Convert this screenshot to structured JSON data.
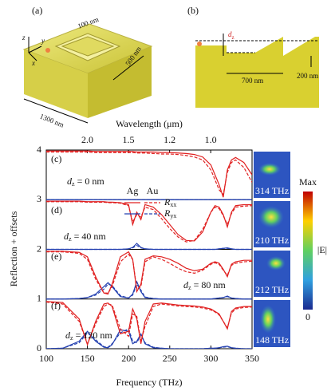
{
  "schematic_a": {
    "label": "(a)",
    "width": "100 nm",
    "side": "500 nm",
    "length": "1300 nm",
    "axes": [
      "x",
      "y",
      "z"
    ]
  },
  "schematic_b": {
    "label": "(b)",
    "offset": {
      "symbol": "d",
      "subscript": "z"
    },
    "period": "700 nm",
    "depth": "200 nm"
  },
  "chart_data": {
    "type": "line",
    "xlabel": "Frequency (THz)",
    "ylabel": "Reflection + offsets",
    "x2label": "Wavelength (μm)",
    "xlim": [
      100,
      350
    ],
    "xticks": [
      100,
      150,
      200,
      250,
      300,
      350
    ],
    "ylim": [
      0,
      4
    ],
    "yticks": [
      0,
      1,
      2,
      3,
      4
    ],
    "x2ticks": [
      {
        "value": 2.0,
        "label": "2.0"
      },
      1.5,
      1.2,
      {
        "value": 1.0,
        "label": "1.0"
      }
    ],
    "grid": true,
    "legend": {
      "columns": [
        "Ag",
        "Au"
      ],
      "rows": [
        {
          "symbol": "R",
          "subscript": "xx"
        },
        {
          "symbol": "R",
          "subscript": "yx"
        }
      ]
    },
    "panels": [
      {
        "label": "(c)",
        "annotation": {
          "symbol": "d",
          "subscript": "z",
          "text": "= 0 nm"
        }
      },
      {
        "label": "(d)",
        "annotation": {
          "symbol": "d",
          "subscript": "z",
          "text": "= 40 nm"
        }
      },
      {
        "label": "(e)",
        "annotation": {
          "symbol": "d",
          "subscript": "z",
          "text": "= 80 nm"
        }
      },
      {
        "label": "(f)",
        "annotation": {
          "symbol": "d",
          "subscript": "z",
          "text": "= 120 nm"
        }
      }
    ],
    "x": [
      100,
      120,
      140,
      150,
      160,
      170,
      175,
      180,
      190,
      200,
      205,
      210,
      215,
      220,
      230,
      240,
      250,
      260,
      270,
      280,
      290,
      300,
      305,
      310,
      315,
      320,
      325,
      330,
      340,
      350
    ],
    "series": [
      {
        "panel": 0,
        "metal": 0,
        "component": 0,
        "color": "#e02020",
        "dash": false,
        "values": [
          3.98,
          3.98,
          3.98,
          3.98,
          3.97,
          3.97,
          3.97,
          3.97,
          3.97,
          3.97,
          3.97,
          3.96,
          3.96,
          3.96,
          3.96,
          3.95,
          3.95,
          3.94,
          3.93,
          3.91,
          3.86,
          3.7,
          3.5,
          3.3,
          3.05,
          3.6,
          3.8,
          3.85,
          3.75,
          3.5
        ]
      },
      {
        "panel": 0,
        "metal": 1,
        "component": 0,
        "color": "#e02020",
        "dash": true,
        "values": [
          3.96,
          3.96,
          3.96,
          3.96,
          3.95,
          3.95,
          3.95,
          3.95,
          3.95,
          3.95,
          3.95,
          3.94,
          3.94,
          3.94,
          3.93,
          3.92,
          3.92,
          3.91,
          3.89,
          3.86,
          3.8,
          3.6,
          3.4,
          3.2,
          3.1,
          3.55,
          3.75,
          3.8,
          3.65,
          3.35
        ]
      },
      {
        "panel": 0,
        "metal": 0,
        "component": 1,
        "color": "#2440b0",
        "dash": false,
        "values": [
          3,
          3,
          3,
          3,
          3,
          3,
          3,
          3,
          3,
          3,
          3,
          3,
          3,
          3,
          3,
          3,
          3,
          3,
          3,
          3,
          3,
          3,
          3,
          3,
          3,
          3,
          3,
          3,
          3,
          3
        ]
      },
      {
        "panel": 0,
        "metal": 1,
        "component": 1,
        "color": "#2440b0",
        "dash": true,
        "values": [
          3,
          3,
          3,
          3,
          3,
          3,
          3,
          3,
          3,
          3,
          3,
          3,
          3,
          3,
          3,
          3,
          3,
          3,
          3,
          3,
          3,
          3,
          3,
          3,
          3,
          3,
          3,
          3,
          3,
          3
        ]
      },
      {
        "panel": 1,
        "metal": 0,
        "component": 0,
        "color": "#e02020",
        "dash": false,
        "values": [
          2.97,
          2.97,
          2.97,
          2.96,
          2.96,
          2.96,
          2.95,
          2.95,
          2.94,
          2.9,
          2.5,
          2.75,
          2.6,
          2.9,
          2.85,
          2.7,
          2.5,
          2.3,
          2.18,
          2.17,
          2.35,
          2.75,
          2.88,
          2.85,
          2.7,
          2.45,
          2.75,
          2.88,
          2.9,
          2.9
        ]
      },
      {
        "panel": 1,
        "metal": 1,
        "component": 0,
        "color": "#e02020",
        "dash": true,
        "values": [
          2.96,
          2.96,
          2.96,
          2.95,
          2.95,
          2.95,
          2.94,
          2.94,
          2.93,
          2.88,
          2.55,
          2.7,
          2.65,
          2.85,
          2.8,
          2.62,
          2.42,
          2.25,
          2.15,
          2.18,
          2.4,
          2.75,
          2.85,
          2.82,
          2.68,
          2.5,
          2.72,
          2.85,
          2.87,
          2.88
        ]
      },
      {
        "panel": 1,
        "metal": 0,
        "component": 1,
        "color": "#2440b0",
        "dash": false,
        "values": [
          2,
          2,
          2,
          2,
          2,
          2,
          2,
          2,
          2,
          2.01,
          2.04,
          2.12,
          2.04,
          2.01,
          2,
          2,
          2,
          2,
          2,
          2,
          2,
          2,
          2,
          2.01,
          2.02,
          2.03,
          2.01,
          2,
          2,
          2
        ]
      },
      {
        "panel": 1,
        "metal": 1,
        "component": 1,
        "color": "#2440b0",
        "dash": true,
        "values": [
          2,
          2,
          2,
          2,
          2,
          2,
          2,
          2,
          2,
          2.01,
          2.03,
          2.08,
          2.03,
          2.01,
          2,
          2,
          2,
          2,
          2,
          2,
          2,
          2,
          2,
          2.01,
          2.02,
          2.02,
          2.01,
          2,
          2,
          2
        ]
      },
      {
        "panel": 2,
        "metal": 0,
        "component": 0,
        "color": "#e02020",
        "dash": false,
        "values": [
          1.96,
          1.96,
          1.94,
          1.85,
          1.45,
          1.12,
          1.1,
          1.3,
          1.85,
          1.95,
          1.8,
          1.15,
          1.3,
          1.8,
          1.87,
          1.85,
          1.8,
          1.72,
          1.62,
          1.57,
          1.6,
          1.72,
          1.75,
          1.72,
          1.6,
          1.45,
          1.7,
          1.75,
          1.78,
          1.78
        ]
      },
      {
        "panel": 2,
        "metal": 1,
        "component": 0,
        "color": "#e02020",
        "dash": true,
        "values": [
          1.95,
          1.95,
          1.92,
          1.8,
          1.4,
          1.12,
          1.12,
          1.25,
          1.75,
          1.9,
          1.8,
          1.2,
          1.25,
          1.75,
          1.85,
          1.8,
          1.72,
          1.62,
          1.55,
          1.52,
          1.58,
          1.7,
          1.73,
          1.7,
          1.58,
          1.48,
          1.68,
          1.72,
          1.75,
          1.76
        ]
      },
      {
        "panel": 2,
        "metal": 0,
        "component": 1,
        "color": "#2440b0",
        "dash": false,
        "values": [
          1,
          1,
          1.01,
          1.03,
          1.1,
          1.25,
          1.33,
          1.25,
          1.05,
          1.02,
          1.1,
          1.35,
          1.15,
          1.03,
          1.01,
          1,
          1,
          1,
          1,
          1,
          1,
          1,
          1.01,
          1.02,
          1.03,
          1.06,
          1.02,
          1.01,
          1,
          1
        ]
      },
      {
        "panel": 2,
        "metal": 1,
        "component": 1,
        "color": "#2440b0",
        "dash": true,
        "values": [
          1,
          1,
          1.01,
          1.03,
          1.08,
          1.2,
          1.3,
          1.27,
          1.07,
          1.02,
          1.08,
          1.3,
          1.18,
          1.04,
          1.01,
          1,
          1,
          1,
          1,
          1,
          1,
          1,
          1.01,
          1.02,
          1.03,
          1.05,
          1.02,
          1.01,
          1,
          1
        ]
      },
      {
        "panel": 3,
        "metal": 0,
        "component": 0,
        "color": "#e02020",
        "dash": false,
        "values": [
          0.95,
          0.93,
          0.6,
          0.08,
          0.55,
          0.9,
          0.92,
          0.85,
          0.3,
          0.35,
          0.8,
          0.6,
          0.1,
          0.55,
          0.9,
          0.92,
          0.9,
          0.88,
          0.87,
          0.86,
          0.84,
          0.8,
          0.75,
          0.7,
          0.55,
          0.4,
          0.75,
          0.82,
          0.85,
          0.85
        ]
      },
      {
        "panel": 3,
        "metal": 1,
        "component": 0,
        "color": "#e02020",
        "dash": true,
        "values": [
          0.94,
          0.9,
          0.55,
          0.1,
          0.5,
          0.85,
          0.9,
          0.88,
          0.4,
          0.25,
          0.7,
          0.65,
          0.15,
          0.45,
          0.85,
          0.9,
          0.88,
          0.86,
          0.85,
          0.84,
          0.82,
          0.78,
          0.74,
          0.68,
          0.55,
          0.42,
          0.72,
          0.8,
          0.83,
          0.84
        ]
      },
      {
        "panel": 3,
        "metal": 0,
        "component": 1,
        "color": "#2440b0",
        "dash": false,
        "values": [
          0,
          0.01,
          0.15,
          0.35,
          0.15,
          0.03,
          0.02,
          0.08,
          0.38,
          0.35,
          0.1,
          0.15,
          0.3,
          0.1,
          0.02,
          0.01,
          0,
          0,
          0,
          0,
          0,
          0.01,
          0.01,
          0.02,
          0.04,
          0.05,
          0.02,
          0.01,
          0,
          0
        ]
      },
      {
        "panel": 3,
        "metal": 1,
        "component": 1,
        "color": "#2440b0",
        "dash": true,
        "values": [
          0,
          0.01,
          0.12,
          0.32,
          0.18,
          0.04,
          0.03,
          0.1,
          0.32,
          0.4,
          0.15,
          0.12,
          0.28,
          0.12,
          0.03,
          0.01,
          0,
          0,
          0,
          0,
          0,
          0.01,
          0.01,
          0.02,
          0.03,
          0.04,
          0.02,
          0.01,
          0,
          0
        ]
      }
    ]
  },
  "field_maps": {
    "labels": [
      "314 THz",
      "210 THz",
      "212 THz",
      "148 THz"
    ],
    "colorbar": {
      "max": "Max",
      "label": "|E|",
      "min": "0"
    }
  }
}
